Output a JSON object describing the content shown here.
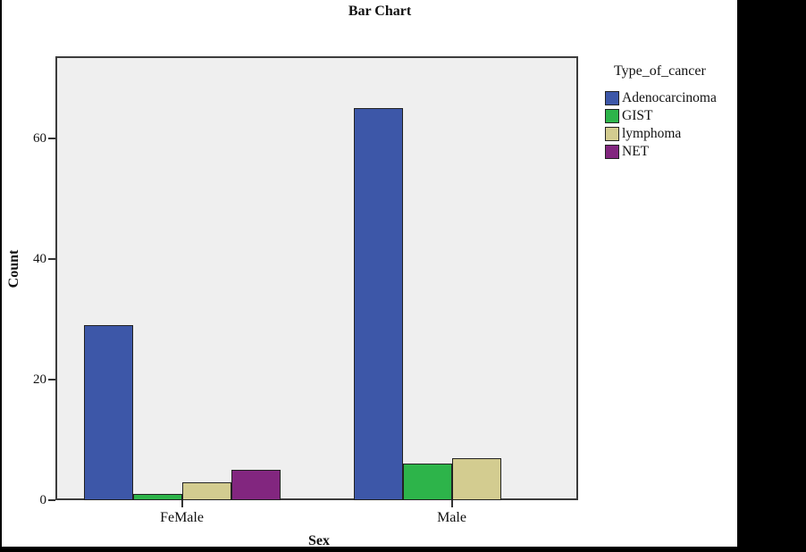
{
  "title": "Bar Chart",
  "chart_data": {
    "type": "bar",
    "title": "Bar Chart",
    "xlabel": "Sex",
    "ylabel": "Count",
    "categories": [
      "FeMale",
      "Male"
    ],
    "series": [
      {
        "name": "Adenocarcinoma",
        "color": "#3D57A8",
        "values": [
          29,
          65
        ]
      },
      {
        "name": "GIST",
        "color": "#2DB44A",
        "values": [
          1,
          6
        ]
      },
      {
        "name": "lymphoma",
        "color": "#D3CC90",
        "values": [
          3,
          7
        ]
      },
      {
        "name": "NET",
        "color": "#82267F",
        "values": [
          5,
          0
        ]
      }
    ],
    "yticks": [
      0,
      20,
      40,
      60
    ],
    "ylim": [
      0,
      73.6
    ],
    "legend_title": "Type_of_cancer",
    "legend_position": "right",
    "grid": false,
    "plot_bg": "#EFEFEF",
    "border_color": "#3c3c3c"
  }
}
